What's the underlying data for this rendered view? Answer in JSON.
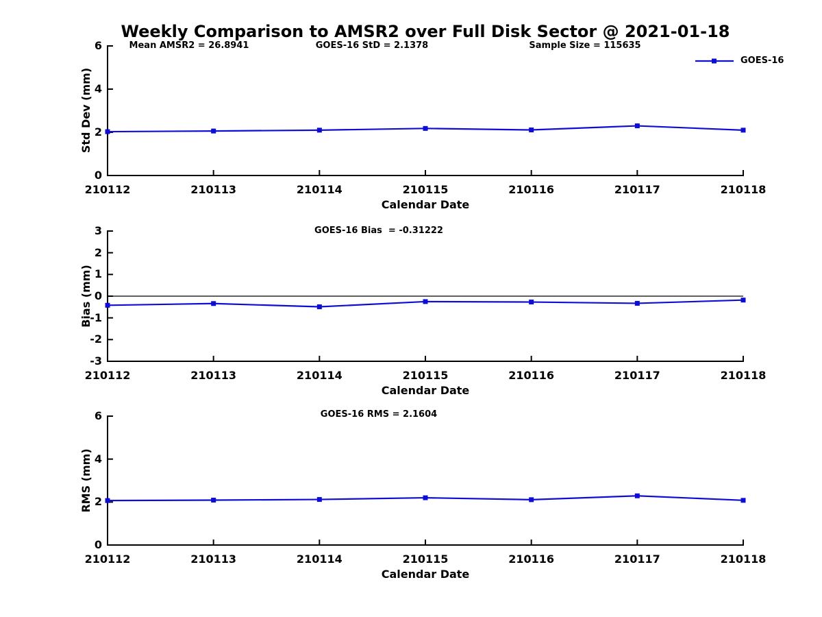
{
  "page": {
    "title": "Weekly Comparison to AMSR2 over Full Disk Sector @ 2021-01-18",
    "background": "#ffffff",
    "axis_color": "#000000"
  },
  "legend": {
    "label": "GOES-16",
    "color": "#0d0dd6"
  },
  "chart_data": [
    {
      "type": "line",
      "title": "",
      "annotations": [
        "Mean AMSR2 = 26.8941",
        "GOES-16 StD = 2.1378",
        "Sample Size = 115635"
      ],
      "categories": [
        "210112",
        "210113",
        "210114",
        "210115",
        "210116",
        "210117",
        "210118"
      ],
      "series": [
        {
          "name": "GOES-16",
          "color": "#0d0dd6",
          "marker": "square",
          "values": [
            2.03,
            2.06,
            2.1,
            2.18,
            2.11,
            2.3,
            2.1
          ]
        }
      ],
      "xlabel": "Calendar Date",
      "ylabel": "Std Dev (mm)",
      "ylim": [
        0,
        6
      ],
      "yticks": [
        0,
        2,
        4,
        6
      ],
      "grid": false,
      "zero_line": false,
      "legend": {
        "show": true,
        "position": "top-right",
        "label": "GOES-16"
      }
    },
    {
      "type": "line",
      "title": "GOES-16 Bias  = -0.31222",
      "annotations": [],
      "categories": [
        "210112",
        "210113",
        "210114",
        "210115",
        "210116",
        "210117",
        "210118"
      ],
      "series": [
        {
          "name": "GOES-16",
          "color": "#0d0dd6",
          "marker": "square",
          "values": [
            -0.42,
            -0.34,
            -0.49,
            -0.25,
            -0.27,
            -0.33,
            -0.18
          ]
        }
      ],
      "xlabel": "Calendar Date",
      "ylabel": "Bias (mm)",
      "ylim": [
        -3,
        3
      ],
      "yticks": [
        -3,
        -2,
        -1,
        0,
        1,
        2,
        3
      ],
      "grid": false,
      "zero_line": true,
      "legend": {
        "show": false
      }
    },
    {
      "type": "line",
      "title": "GOES-16 RMS = 2.1604",
      "annotations": [],
      "categories": [
        "210112",
        "210113",
        "210114",
        "210115",
        "210116",
        "210117",
        "210118"
      ],
      "series": [
        {
          "name": "GOES-16",
          "color": "#0d0dd6",
          "marker": "square",
          "values": [
            2.07,
            2.09,
            2.12,
            2.2,
            2.11,
            2.29,
            2.08
          ]
        }
      ],
      "xlabel": "Calendar Date",
      "ylabel": "RMS (mm)",
      "ylim": [
        0,
        6
      ],
      "yticks": [
        0,
        2,
        4,
        6
      ],
      "grid": false,
      "zero_line": false,
      "legend": {
        "show": false
      }
    }
  ]
}
